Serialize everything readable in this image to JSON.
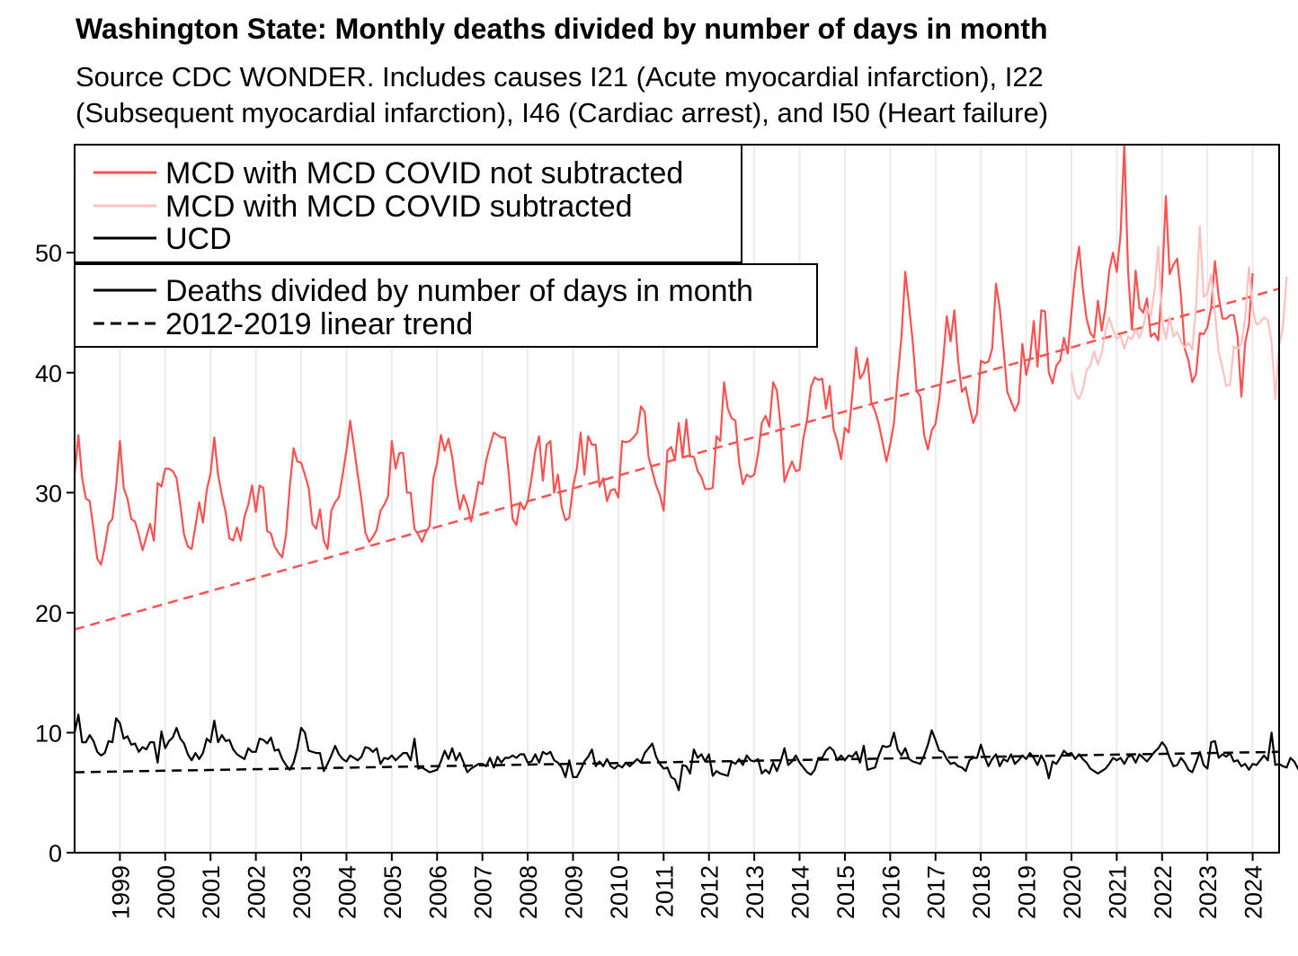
{
  "chart_data": {
    "type": "line",
    "title": "Washington State: Monthly deaths divided by number of days in month",
    "subtitle_lines": [
      "Source CDC WONDER. Includes causes I21 (Acute myocardial infarction), I22",
      "(Subsequent myocardial infarction), I46 (Cardiac arrest), and I50 (Heart failure)"
    ],
    "xlabel": "",
    "ylabel": "",
    "xlim": [
      "1998-01",
      "2024-08"
    ],
    "ylim": [
      0,
      59
    ],
    "y_ticks": [
      0,
      10,
      20,
      30,
      40,
      50
    ],
    "x_ticks": [
      "1999",
      "2000",
      "2001",
      "2002",
      "2003",
      "2004",
      "2005",
      "2006",
      "2007",
      "2008",
      "2009",
      "2010",
      "2011",
      "2012",
      "2013",
      "2014",
      "2015",
      "2016",
      "2017",
      "2018",
      "2019",
      "2020",
      "2021",
      "2022",
      "2023",
      "2024"
    ],
    "grid": "vertical lines at each year",
    "legend_series": [
      {
        "label": "MCD with MCD COVID not subtracted",
        "color": "#ff5050"
      },
      {
        "label": "MCD with MCD COVID subtracted",
        "color": "#ffc0c0"
      },
      {
        "label": "UCD",
        "color": "#000000"
      }
    ],
    "legend_styles": [
      {
        "label": "Deaths divided by number of days in month",
        "dash": "solid"
      },
      {
        "label": "2012-2019 linear trend",
        "dash": "dashed"
      }
    ],
    "legend_placement": "top-left",
    "series": [
      {
        "name": "MCD with MCD COVID not subtracted",
        "color": "#ff5050",
        "x_start": "1998-01",
        "values": [
          31.5,
          34.8,
          31.2,
          29.5,
          29.3,
          27.0,
          24.5,
          24.0,
          25.5,
          27.4,
          27.8,
          30.5,
          34.3,
          30.4,
          29.5,
          27.8,
          27.6,
          26.5,
          25.2,
          26.3,
          27.4,
          26.0,
          30.8,
          30.5,
          32.0,
          32.0,
          31.8,
          31.2,
          29.0,
          26.5,
          25.5,
          25.3,
          27.2,
          29.2,
          27.5,
          30.2,
          31.6,
          34.6,
          31.5,
          29.8,
          28.4,
          26.2,
          26.0,
          27.1,
          26.0,
          28.0,
          29.0,
          30.6,
          28.4,
          30.6,
          30.4,
          26.8,
          26.6,
          25.5,
          25.0,
          24.6,
          26.5,
          30.5,
          33.7,
          32.6,
          32.5,
          31.5,
          30.4,
          27.4,
          27.0,
          28.6,
          26.0,
          25.3,
          28.5,
          29.2,
          29.6,
          31.5,
          33.5,
          36.0,
          33.8,
          31.5,
          29.3,
          26.7,
          25.9,
          26.3,
          26.9,
          28.5,
          29.0,
          29.7,
          34.3,
          32.0,
          33.3,
          33.3,
          30.0,
          30.0,
          27.0,
          26.5,
          25.9,
          26.7,
          27.2,
          31.2,
          32.5,
          34.8,
          33.5,
          34.5,
          33.0,
          30.5,
          28.6,
          29.8,
          28.9,
          27.6,
          29.2,
          30.9,
          30.7,
          32.7,
          33.9,
          35.0,
          34.8,
          34.6,
          34.6,
          31.5,
          27.8,
          27.3,
          29.2,
          28.6,
          29.3,
          31.2,
          33.5,
          34.7,
          31.0,
          34.0,
          34.3,
          30.0,
          31.5,
          28.8,
          27.7,
          27.9,
          30.5,
          32.0,
          35.0,
          31.5,
          34.7,
          34.0,
          34.0,
          30.5,
          31.2,
          29.3,
          30.2,
          30.3,
          29.6,
          34.3,
          34.2,
          34.3,
          34.6,
          35.0,
          37.2,
          36.7,
          33.0,
          31.8,
          30.6,
          29.8,
          28.5,
          33.5,
          33.8,
          32.7,
          35.8,
          33.0,
          36.1,
          33.0,
          33.0,
          31.8,
          31.3,
          30.3,
          30.3,
          30.4,
          34.7,
          34.3,
          39.2,
          37.0,
          36.2,
          36.0,
          32.5,
          30.7,
          31.5,
          31.3,
          31.5,
          33.2,
          35.8,
          36.4,
          35.5,
          39.2,
          38.5,
          35.5,
          30.9,
          31.8,
          32.6,
          31.8,
          31.9,
          34.5,
          36.1,
          38.8,
          39.6,
          39.4,
          39.5,
          37.0,
          38.9,
          35.3,
          34.3,
          32.8,
          35.4,
          35.0,
          38.2,
          42.1,
          39.5,
          40.0,
          41.2,
          37.5,
          36.8,
          35.7,
          34.2,
          32.6,
          34.0,
          35.8,
          39.6,
          43.0,
          48.4,
          45.6,
          42.5,
          38.5,
          38.0,
          34.8,
          33.6,
          35.2,
          35.7,
          37.8,
          40.9,
          44.7,
          42.6,
          45.2,
          41.0,
          38.4,
          38.8,
          37.2,
          35.8,
          36.6,
          41.0,
          40.8,
          40.9,
          42.0,
          47.4,
          45.4,
          42.0,
          38.4,
          37.6,
          36.8,
          37.5,
          42.4,
          39.8,
          41.2,
          44.3,
          40.5,
          45.2,
          45.1,
          40.0,
          39.1,
          40.6,
          41.0,
          42.9,
          41.6,
          45.0,
          48.3,
          50.5,
          47.0,
          44.5,
          43.3,
          42.9,
          46.0,
          43.5,
          45.4,
          48.5,
          50.0,
          48.4,
          51.5,
          59.0,
          48.4,
          43.6,
          48.5,
          45.4,
          45.0,
          46.2,
          43.0,
          43.3,
          42.7,
          47.5,
          54.7,
          48.2,
          49.0,
          49.5,
          46.4,
          42.0,
          41.0,
          39.2,
          39.9,
          43.3,
          43.2,
          43.8,
          45.4,
          49.3,
          46.3,
          44.5,
          44.5,
          44.8,
          44.8,
          43.0,
          38.0,
          42.5,
          44.0,
          48.3
        ]
      },
      {
        "name": "MCD with MCD COVID subtracted",
        "color": "#ffc0c0",
        "x_start": "2020-01",
        "values": [
          40.0,
          38.3,
          37.8,
          38.6,
          40.2,
          40.6,
          41.8,
          40.7,
          41.6,
          43.5,
          44.6,
          43.6,
          42.8,
          43.1,
          42.0,
          43.0,
          42.8,
          43.6,
          42.9,
          43.8,
          45.4,
          44.7,
          46.8,
          50.5,
          44.3,
          42.8,
          44.6,
          43.0,
          43.4,
          42.6,
          42.1,
          42.5,
          41.9,
          45.5,
          52.2,
          46.3,
          46.6,
          48.2,
          45.0,
          41.7,
          40.4,
          38.9,
          39.0,
          42.2,
          42.0,
          42.4,
          44.5,
          48.8,
          45.3,
          44.0,
          44.2,
          44.6,
          44.4,
          42.6,
          37.8,
          42.3,
          43.8,
          48.0
        ]
      },
      {
        "name": "UCD",
        "color": "#000000",
        "x_start": "1998-01",
        "values": [
          10.0,
          11.5,
          9.2,
          9.2,
          9.8,
          9.3,
          8.4,
          8.1,
          8.3,
          9.3,
          9.2,
          11.2,
          10.8,
          9.5,
          9.7,
          9.0,
          9.1,
          8.4,
          8.8,
          8.6,
          9.2,
          9.2,
          7.5,
          10.1,
          8.7,
          9.3,
          9.6,
          10.4,
          9.5,
          9.1,
          8.2,
          7.7,
          8.3,
          7.8,
          8.3,
          9.5,
          9.2,
          11.0,
          9.2,
          9.8,
          9.3,
          9.4,
          8.6,
          8.2,
          8.0,
          7.8,
          8.7,
          8.4,
          8.4,
          9.5,
          9.4,
          9.1,
          9.6,
          8.5,
          8.6,
          7.8,
          7.3,
          6.9,
          7.5,
          8.7,
          10.4,
          10.0,
          8.5,
          8.4,
          8.3,
          8.3,
          6.8,
          7.4,
          8.1,
          8.9,
          8.2,
          7.8,
          7.6,
          8.1,
          7.9,
          7.7,
          8.0,
          8.8,
          8.7,
          8.4,
          8.7,
          7.4,
          7.9,
          7.8,
          8.1,
          7.7,
          8.0,
          8.3,
          8.3,
          7.7,
          9.5,
          7.0,
          7.1,
          6.9,
          6.7,
          6.8,
          6.9,
          7.6,
          8.5,
          7.8,
          8.7,
          7.7,
          8.3,
          7.5,
          6.7,
          7.0,
          7.2,
          7.4,
          7.4,
          7.2,
          7.9,
          7.1,
          8.0,
          7.5,
          7.9,
          7.9,
          8.1,
          7.9,
          8.2,
          8.2,
          7.5,
          7.6,
          8.2,
          7.5,
          8.4,
          8.2,
          8.4,
          7.7,
          7.5,
          7.1,
          6.3,
          7.7,
          6.3,
          6.3,
          6.9,
          7.6,
          8.0,
          8.6,
          7.2,
          7.6,
          7.2,
          7.8,
          7.2,
          7.0,
          7.3,
          7.1,
          7.5,
          7.2,
          7.5,
          7.8,
          7.5,
          8.3,
          8.7,
          9.1,
          8.0,
          7.4,
          7.0,
          7.1,
          6.3,
          6.1,
          5.2,
          7.3,
          7.2,
          6.6,
          8.6,
          7.9,
          8.2,
          7.6,
          8.2,
          6.4,
          6.8,
          6.6,
          6.5,
          6.4,
          7.6,
          7.4,
          7.8,
          7.3,
          8.1,
          7.7,
          7.6,
          7.8,
          6.6,
          6.9,
          6.6,
          7.5,
          6.8,
          7.6,
          8.7,
          7.3,
          7.6,
          8.1,
          7.5,
          7.1,
          6.7,
          6.5,
          6.9,
          7.9,
          7.9,
          8.5,
          8.8,
          8.5,
          7.7,
          8.1,
          7.7,
          8.1,
          8.0,
          8.4,
          7.5,
          8.9,
          6.9,
          7.0,
          7.1,
          8.1,
          8.9,
          8.8,
          8.9,
          10.0,
          8.6,
          8.1,
          8.7,
          7.8,
          7.6,
          7.5,
          7.4,
          8.1,
          9.0,
          10.2,
          9.4,
          8.5,
          8.4,
          7.8,
          7.4,
          7.5,
          7.2,
          7.1,
          6.8,
          7.7,
          7.9,
          7.9,
          9.0,
          8.0,
          7.2,
          7.8,
          8.2,
          7.2,
          7.8,
          7.6,
          8.2,
          7.4,
          7.7,
          8.1,
          7.8,
          8.3,
          7.9,
          7.3,
          8.1,
          7.5,
          6.2,
          7.6,
          7.4,
          7.9,
          8.5,
          8.2,
          8.3,
          7.8,
          8.2,
          7.8,
          7.5,
          7.0,
          6.8,
          6.6,
          6.8,
          7.0,
          7.4,
          7.9,
          7.7,
          7.9,
          7.4,
          8.0,
          8.1,
          7.5,
          8.2,
          7.9,
          7.6,
          8.0,
          8.4,
          8.7,
          9.2,
          8.8,
          7.9,
          7.2,
          7.3,
          7.9,
          7.5,
          6.9,
          6.7,
          7.5,
          8.4,
          7.3,
          7.0,
          9.2,
          9.3,
          7.9,
          8.2,
          8.0,
          8.3,
          7.6,
          7.7,
          7.2,
          7.4,
          6.9,
          7.4,
          7.3,
          7.7,
          8.1,
          7.7,
          10.0,
          7.3,
          7.4,
          7.2,
          7.1,
          7.9,
          7.6,
          7.0,
          6.6,
          7.5,
          8.0,
          8.0,
          8.1
        ]
      }
    ],
    "trends": [
      {
        "name": "MCD with MCD COVID not subtracted 2012-2019 linear trend",
        "color": "#ff5050",
        "dash": "dashed",
        "points": [
          [
            "1998-01",
            18.6
          ],
          [
            "2024-08",
            47.0
          ]
        ]
      },
      {
        "name": "UCD 2012-2019 linear trend",
        "color": "#000000",
        "dash": "dashed",
        "points": [
          [
            "1998-01",
            6.7
          ],
          [
            "2024-08",
            8.4
          ]
        ]
      }
    ]
  }
}
